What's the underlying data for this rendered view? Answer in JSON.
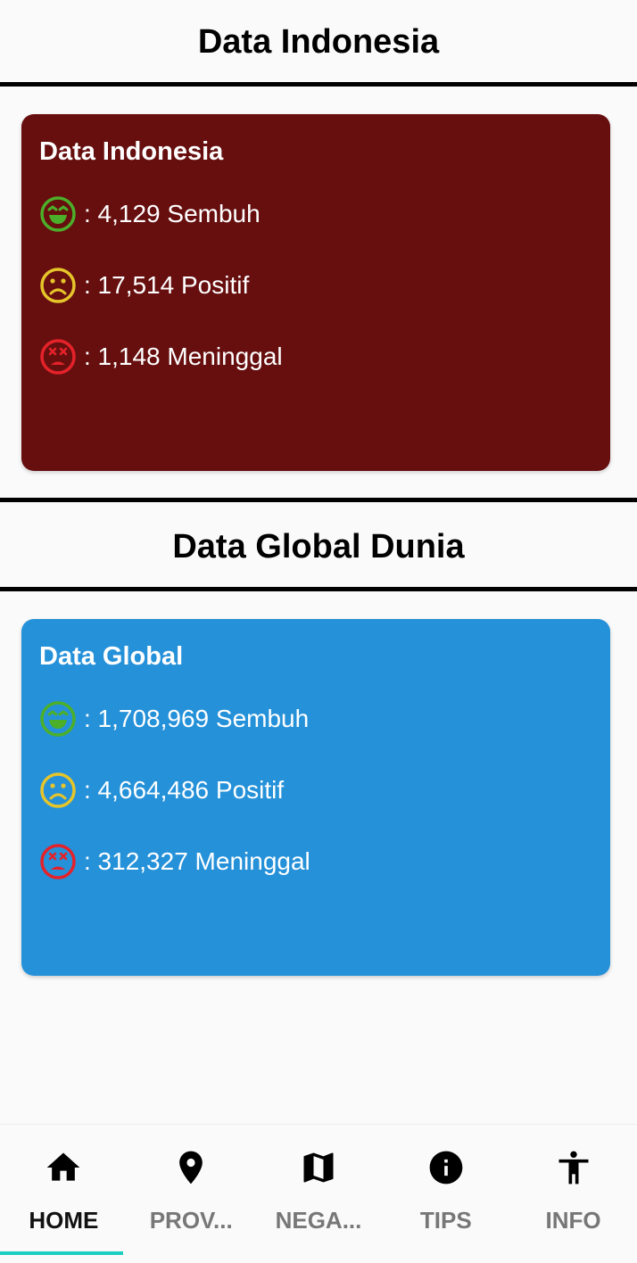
{
  "indonesia_section": {
    "header": "Data Indonesia",
    "card": {
      "title": "Data Indonesia",
      "background_color": "#670f0f",
      "recovered": ": 4,129 Sembuh",
      "positive": ": 17,514 Positif",
      "deaths": ": 1,148 Meninggal"
    }
  },
  "global_section": {
    "header": "Data Global Dunia",
    "card": {
      "title": "Data Global",
      "background_color": "#2591d9",
      "recovered": ": 1,708,969 Sembuh",
      "positive": ": 4,664,486 Positif",
      "deaths": ": 312,327 Meninggal"
    }
  },
  "icons": {
    "recovered": {
      "name": "laughing-face-icon",
      "color": "#4caf2a"
    },
    "positive": {
      "name": "sad-face-icon",
      "color": "#e6c52b"
    },
    "deaths": {
      "name": "dead-face-icon",
      "color": "#e5222a"
    }
  },
  "bottom_nav": {
    "active_index": 0,
    "accent_color": "#1ccfc0",
    "items": [
      {
        "label": "HOME",
        "icon": "home-icon"
      },
      {
        "label": "PROV...",
        "icon": "location-pin-icon"
      },
      {
        "label": "NEGA...",
        "icon": "map-icon"
      },
      {
        "label": "TIPS",
        "icon": "info-circle-icon"
      },
      {
        "label": "INFO",
        "icon": "accessibility-icon"
      }
    ]
  }
}
